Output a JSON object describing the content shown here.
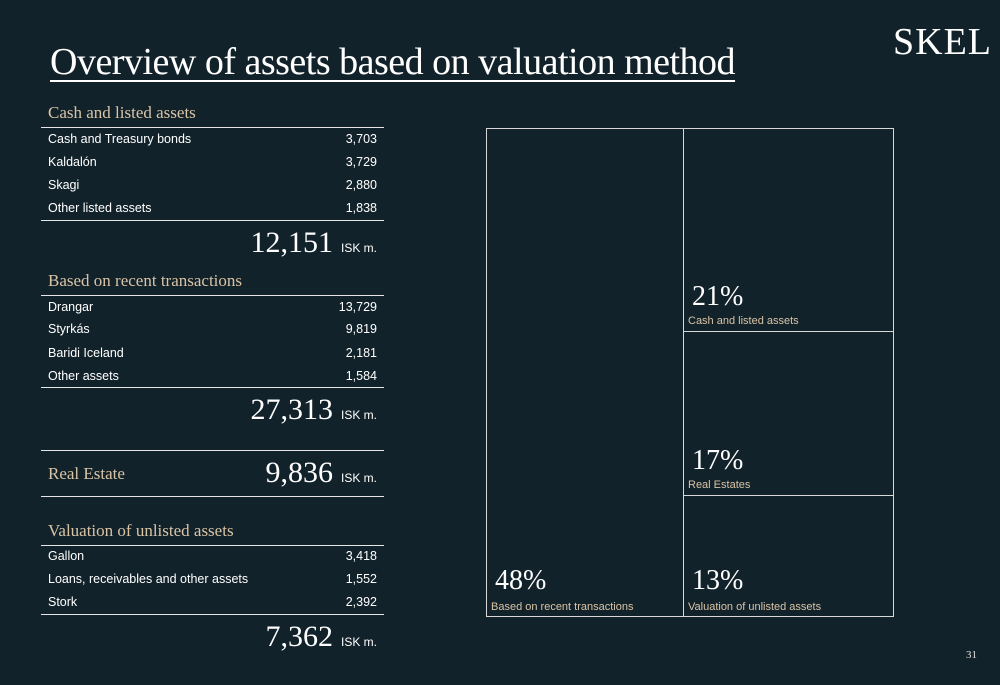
{
  "header": {
    "title": "Overview of assets based on valuation method",
    "logo": "SKEL"
  },
  "cash_section": {
    "title": "Cash and listed assets",
    "rows": [
      {
        "label": "Cash and Treasury bonds",
        "value": "3,703"
      },
      {
        "label": "Kaldalón",
        "value": "3,729"
      },
      {
        "label": "Skagi",
        "value": "2,880"
      },
      {
        "label": "Other listed assets",
        "value": "1,838"
      }
    ],
    "total": "12,151",
    "unit": "ISK m."
  },
  "recent_section": {
    "title": "Based on recent transactions",
    "rows": [
      {
        "label": "Drangar",
        "value": "13,729"
      },
      {
        "label": "Styrkás",
        "value": "9,819"
      },
      {
        "label": "Baridi Iceland",
        "value": "2,181"
      },
      {
        "label": "Other assets",
        "value": "1,584"
      }
    ],
    "total": "27,313",
    "unit": "ISK m."
  },
  "real_estate": {
    "label": "Real Estate",
    "total": "9,836",
    "unit": "ISK m."
  },
  "unlisted_section": {
    "title": "Valuation of unlisted assets",
    "rows": [
      {
        "label": "Gallon",
        "value": "3,418"
      },
      {
        "label": "Loans, receivables and other assets",
        "value": "1,552"
      },
      {
        "label": "Stork",
        "value": "2,392"
      }
    ],
    "total": "7,362",
    "unit": "ISK m."
  },
  "treemap": {
    "border_color": "#d8d8d8",
    "label_color": "#d9c4a6",
    "cells": [
      {
        "pct": "48%",
        "label": "Based on recent transactions"
      },
      {
        "pct": "21%",
        "label": "Cash and listed assets"
      },
      {
        "pct": "17%",
        "label": "Real Estates"
      },
      {
        "pct": "13%",
        "label": "Valuation of unlisted assets"
      }
    ]
  },
  "page_number": "31"
}
